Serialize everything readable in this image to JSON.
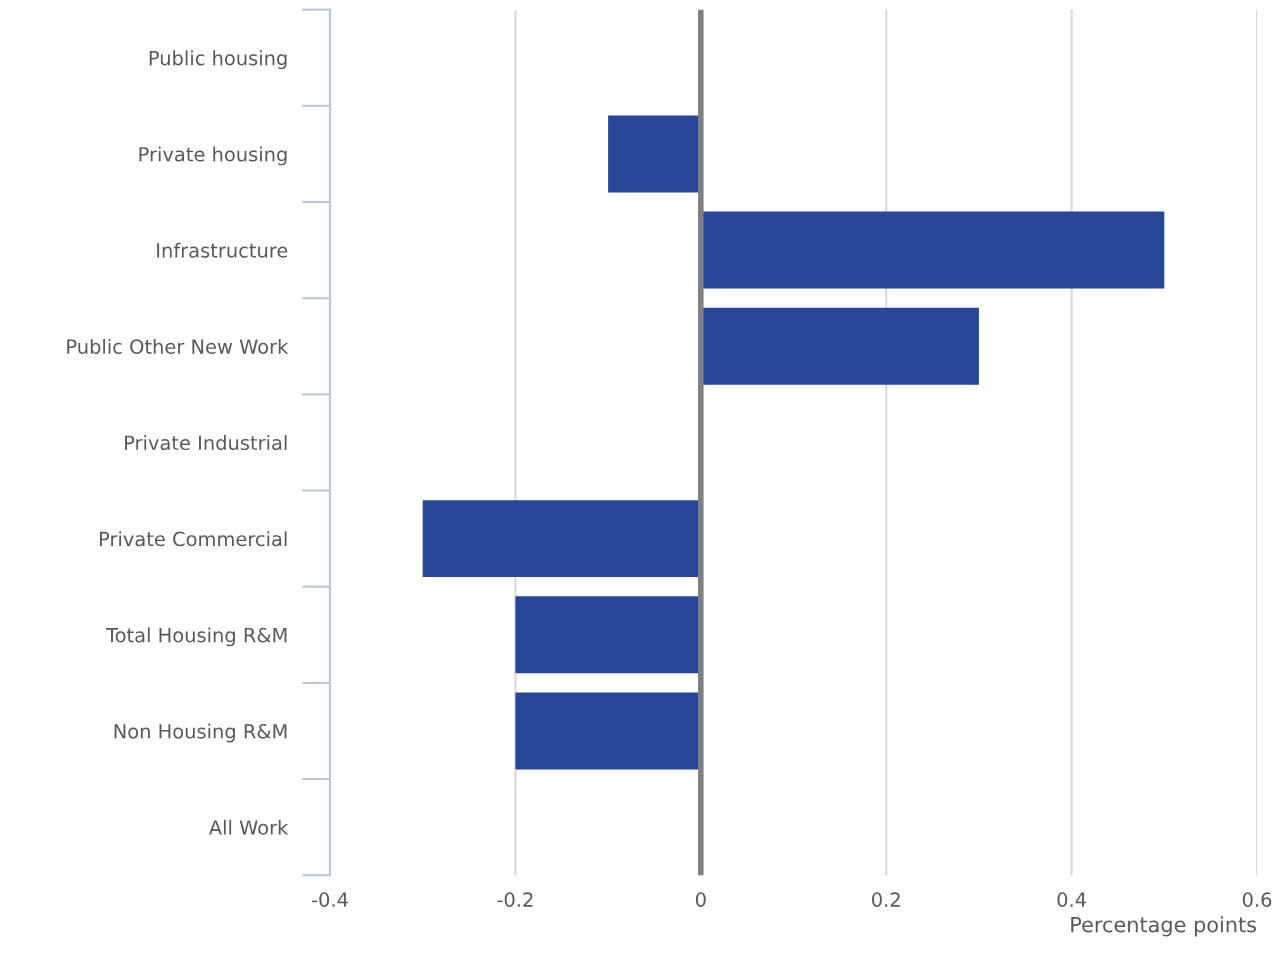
{
  "chart_data": {
    "type": "bar",
    "orientation": "horizontal",
    "xlabel": "Percentage points",
    "categories": [
      "Public housing",
      "Private housing",
      "Infrastructure",
      "Public Other New Work",
      "Private Industrial",
      "Private Commercial",
      "Total Housing R&M",
      "Non Housing R&M",
      "All Work"
    ],
    "values": [
      0,
      -0.1,
      0.5,
      0.3,
      0,
      -0.3,
      -0.2,
      -0.2,
      0
    ],
    "color": "#27479a",
    "xlim": [
      -0.4,
      0.6
    ],
    "xticks": [
      -0.4,
      -0.2,
      0,
      0.2,
      0.4,
      0.6
    ],
    "grid": "x",
    "legend": false,
    "ref_lines": [
      {
        "axis": "x",
        "value": 0,
        "color": "#808080"
      }
    ]
  }
}
